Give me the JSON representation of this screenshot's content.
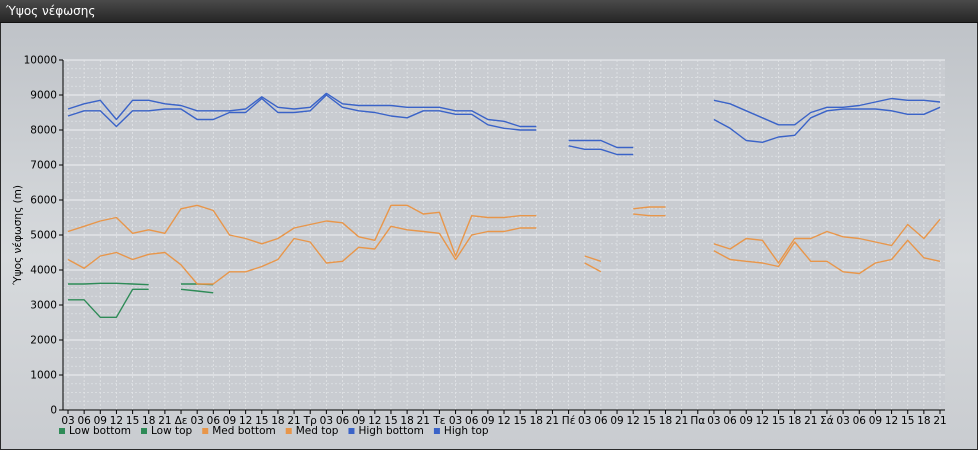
{
  "window": {
    "title": "Ύψος νέφωσης"
  },
  "chart_data": {
    "type": "line",
    "title": "",
    "xlabel": "",
    "ylabel": "Ύψος νέφωσης (m)",
    "ylim": [
      0,
      10000
    ],
    "yticks": [
      0,
      1000,
      2000,
      3000,
      4000,
      5000,
      6000,
      7000,
      8000,
      9000,
      10000
    ],
    "grid": true,
    "legend_position": "bottom-left",
    "categories": [
      "03",
      "06",
      "09",
      "12",
      "15",
      "18",
      "21",
      "Δε",
      "03",
      "06",
      "09",
      "12",
      "15",
      "18",
      "21",
      "Τρ",
      "03",
      "06",
      "09",
      "12",
      "15",
      "18",
      "21",
      "Τε",
      "03",
      "06",
      "09",
      "12",
      "15",
      "18",
      "21",
      "Πέ",
      "03",
      "06",
      "09",
      "12",
      "15",
      "18",
      "21",
      "Πα",
      "03",
      "06",
      "09",
      "12",
      "15",
      "18",
      "21",
      "Σά",
      "03",
      "06",
      "09",
      "12",
      "15",
      "18",
      "21"
    ],
    "series": [
      {
        "name": "Low bottom",
        "color": "#2e8b57",
        "values": [
          3150,
          3150,
          2650,
          2650,
          3450,
          3450,
          null,
          3450,
          3400,
          3350,
          null,
          null,
          null,
          null,
          null,
          null,
          null,
          null,
          null,
          null,
          null,
          null,
          null,
          null,
          null,
          null,
          null,
          null,
          null,
          null,
          null,
          null,
          null,
          null,
          null,
          null,
          null,
          null,
          null,
          null,
          null,
          null,
          null,
          null,
          null,
          null,
          null,
          null,
          null,
          null,
          null,
          null,
          null,
          null,
          null
        ]
      },
      {
        "name": "Low top",
        "color": "#2e8b57",
        "values": [
          3600,
          3600,
          3620,
          3620,
          3600,
          3580,
          null,
          3600,
          3600,
          3580,
          null,
          null,
          null,
          null,
          null,
          null,
          null,
          null,
          null,
          null,
          null,
          null,
          null,
          null,
          null,
          null,
          null,
          null,
          null,
          null,
          null,
          null,
          null,
          null,
          null,
          null,
          null,
          null,
          null,
          null,
          null,
          null,
          null,
          null,
          null,
          null,
          null,
          null,
          null,
          null,
          null,
          null,
          null,
          null,
          null
        ]
      },
      {
        "name": "Med bottom",
        "color": "#e8964a",
        "values": [
          4300,
          4050,
          4400,
          4500,
          4300,
          4450,
          4500,
          4150,
          3600,
          3600,
          3950,
          3950,
          4100,
          4300,
          4900,
          4800,
          4200,
          4250,
          4650,
          4600,
          5250,
          5150,
          5100,
          5050,
          4300,
          5000,
          5100,
          5100,
          5200,
          5200,
          null,
          null,
          4200,
          3950,
          null,
          5600,
          5550,
          5550,
          null,
          null,
          4550,
          4300,
          4250,
          4200,
          4100,
          4800,
          4250,
          4250,
          3950,
          3900,
          4200,
          4300,
          4850,
          4350,
          4250
        ]
      },
      {
        "name": "Med top",
        "color": "#e8964a",
        "values": [
          5100,
          5250,
          5400,
          5500,
          5050,
          5150,
          5050,
          5750,
          5850,
          5700,
          5000,
          4900,
          4750,
          4900,
          5200,
          5300,
          5400,
          5350,
          4950,
          4850,
          5850,
          5850,
          5600,
          5650,
          4400,
          5550,
          5500,
          5500,
          5550,
          5550,
          null,
          null,
          4400,
          4250,
          null,
          5750,
          5800,
          5800,
          null,
          null,
          4750,
          4600,
          4900,
          4850,
          4200,
          4900,
          4900,
          5100,
          4950,
          4900,
          4800,
          4700,
          5300,
          4900,
          5450
        ]
      },
      {
        "name": "High bottom",
        "color": "#3a63c8",
        "values": [
          8400,
          8550,
          8550,
          8100,
          8550,
          8550,
          8600,
          8600,
          8300,
          8300,
          8500,
          8500,
          8900,
          8500,
          8500,
          8550,
          9000,
          8650,
          8550,
          8500,
          8400,
          8350,
          8550,
          8550,
          8450,
          8450,
          8150,
          8050,
          8000,
          8000,
          null,
          7550,
          7450,
          7450,
          7300,
          7300,
          null,
          null,
          null,
          null,
          8300,
          8050,
          7700,
          7650,
          7800,
          7850,
          8350,
          8550,
          8600,
          8600,
          8600,
          8550,
          8450,
          8450,
          8650
        ]
      },
      {
        "name": "High top",
        "color": "#3a63c8",
        "values": [
          8600,
          8750,
          8850,
          8300,
          8850,
          8850,
          8750,
          8700,
          8550,
          8550,
          8550,
          8600,
          8950,
          8650,
          8600,
          8650,
          9050,
          8750,
          8700,
          8700,
          8700,
          8650,
          8650,
          8650,
          8550,
          8550,
          8300,
          8250,
          8100,
          8100,
          null,
          7700,
          7700,
          7700,
          7500,
          7500,
          null,
          null,
          null,
          null,
          8850,
          8750,
          8550,
          8350,
          8150,
          8150,
          8500,
          8650,
          8650,
          8700,
          8800,
          8900,
          8850,
          8850,
          8800
        ]
      }
    ]
  }
}
